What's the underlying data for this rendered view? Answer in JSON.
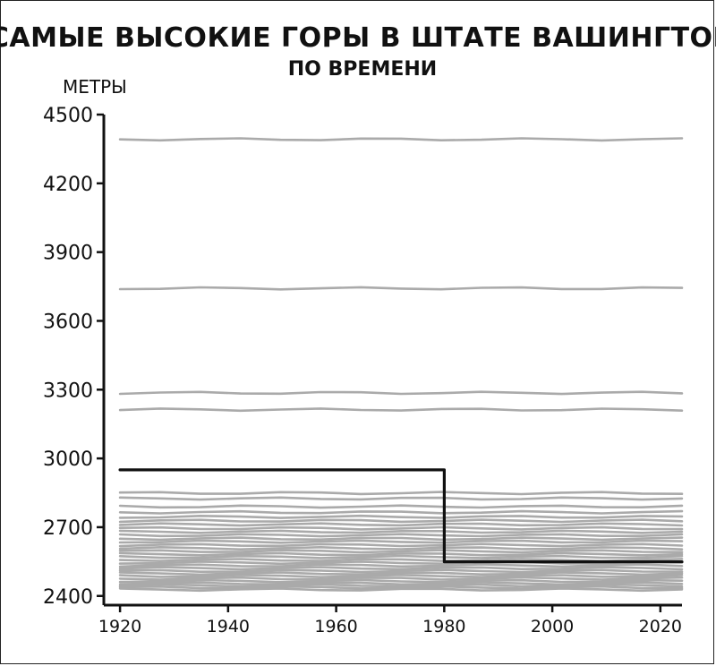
{
  "chart_data": {
    "type": "line",
    "title": "САМЫЕ ВЫСОКИЕ ГОРЫ В ШТАТЕ ВАШИНГТОН",
    "subtitle": "ПО ВРЕМЕНИ",
    "xlabel": "",
    "ylabel": "МЕТРЫ",
    "xlim": [
      1917,
      2024
    ],
    "ylim": [
      2360,
      4500
    ],
    "x_ticks": [
      1920,
      1940,
      1960,
      1980,
      2000,
      2020
    ],
    "y_ticks": [
      4500,
      4200,
      3900,
      3600,
      3300,
      3000,
      2700,
      2400
    ],
    "grid": false,
    "legend": "none",
    "colors": {
      "axis": "#111111",
      "background_series": "#aaaaaa",
      "highlight": "#111111"
    },
    "background_series_values": [
      4392,
      3742,
      3286,
      3213,
      2849,
      2825,
      2790,
      2765,
      2745,
      2728,
      2712,
      2695,
      2680,
      2665,
      2650,
      2637,
      2622,
      2608,
      2595,
      2582,
      2570,
      2557,
      2545,
      2533,
      2521,
      2509,
      2498,
      2487,
      2476,
      2465,
      2455,
      2446,
      2437,
      2428
    ],
    "highlight_series": {
      "x": [
        1920,
        1980,
        1980,
        2024
      ],
      "y": [
        2950,
        2950,
        2549,
        2549
      ]
    }
  }
}
